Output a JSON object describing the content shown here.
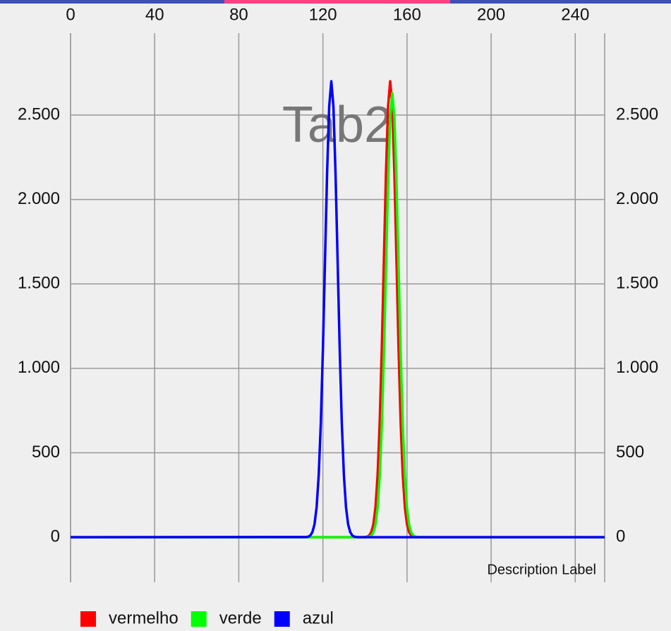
{
  "chart_data": {
    "type": "line",
    "title": "Tab2",
    "description": "Description Label",
    "x": [
      0,
      112,
      113,
      114,
      115,
      116,
      117,
      118,
      119,
      120,
      121,
      122,
      123,
      124,
      125,
      126,
      127,
      128,
      129,
      130,
      131,
      132,
      133,
      134,
      135,
      136,
      137,
      138,
      139,
      140,
      141,
      142,
      143,
      144,
      145,
      146,
      147,
      148,
      149,
      150,
      151,
      152,
      153,
      154,
      155,
      156,
      157,
      158,
      159,
      160,
      161,
      162,
      163,
      164,
      165,
      166,
      254
    ],
    "series": [
      {
        "name": "vermelho",
        "color": "#ff0000",
        "values": [
          0,
          0,
          0,
          0,
          0,
          0,
          0,
          0,
          0,
          0,
          0,
          0,
          0,
          0,
          0,
          0,
          0,
          0,
          0,
          0,
          0,
          0,
          0,
          0,
          0,
          0,
          0,
          0,
          0,
          1,
          3,
          10,
          30,
          76,
          176,
          365,
          673,
          1111,
          1638,
          2157,
          2553,
          2700,
          2553,
          2157,
          1638,
          1111,
          673,
          365,
          176,
          76,
          30,
          10,
          3,
          1,
          0,
          0,
          0
        ]
      },
      {
        "name": "verde",
        "color": "#00ff00",
        "values": [
          0,
          0,
          0,
          0,
          0,
          0,
          0,
          0,
          0,
          0,
          0,
          0,
          0,
          0,
          0,
          0,
          0,
          0,
          0,
          0,
          0,
          0,
          0,
          0,
          0,
          0,
          0,
          0,
          0,
          0,
          1,
          3,
          10,
          29,
          74,
          172,
          356,
          656,
          1082,
          1596,
          2101,
          2487,
          2630,
          2487,
          2101,
          1596,
          1082,
          656,
          356,
          172,
          74,
          29,
          10,
          3,
          1,
          0,
          0
        ]
      },
      {
        "name": "azul",
        "color": "#0000ff",
        "values": [
          0,
          1,
          3,
          10,
          30,
          76,
          176,
          365,
          673,
          1111,
          1638,
          2157,
          2553,
          2700,
          2553,
          2157,
          1638,
          1111,
          673,
          365,
          176,
          76,
          30,
          10,
          3,
          1,
          0,
          0,
          0,
          0,
          0,
          0,
          0,
          0,
          0,
          0,
          0,
          0,
          0,
          0,
          0,
          0,
          0,
          0,
          0,
          0,
          0,
          0,
          0,
          0,
          0,
          0,
          0,
          0,
          0,
          0,
          0
        ]
      }
    ],
    "xlim": [
      0,
      254
    ],
    "xticks": [
      0,
      40,
      80,
      120,
      160,
      200,
      240
    ],
    "ylim": [
      -267,
      2985
    ],
    "yticks": [
      0,
      500,
      {
        "value": 1000,
        "label": "1.000"
      },
      {
        "value": 1500,
        "label": "1.500"
      },
      {
        "value": 2000,
        "label": "2.000"
      },
      {
        "value": 2500,
        "label": "2.500"
      }
    ],
    "y2lim": [
      -267,
      2985
    ],
    "y2ticks": [
      0,
      500,
      {
        "value": 1000,
        "label": "1.000"
      },
      {
        "value": 1500,
        "label": "1.500"
      },
      {
        "value": 2000,
        "label": "2.000"
      },
      {
        "value": 2500,
        "label": "2.500"
      }
    ],
    "grid": true,
    "legend": "bottom-left"
  }
}
